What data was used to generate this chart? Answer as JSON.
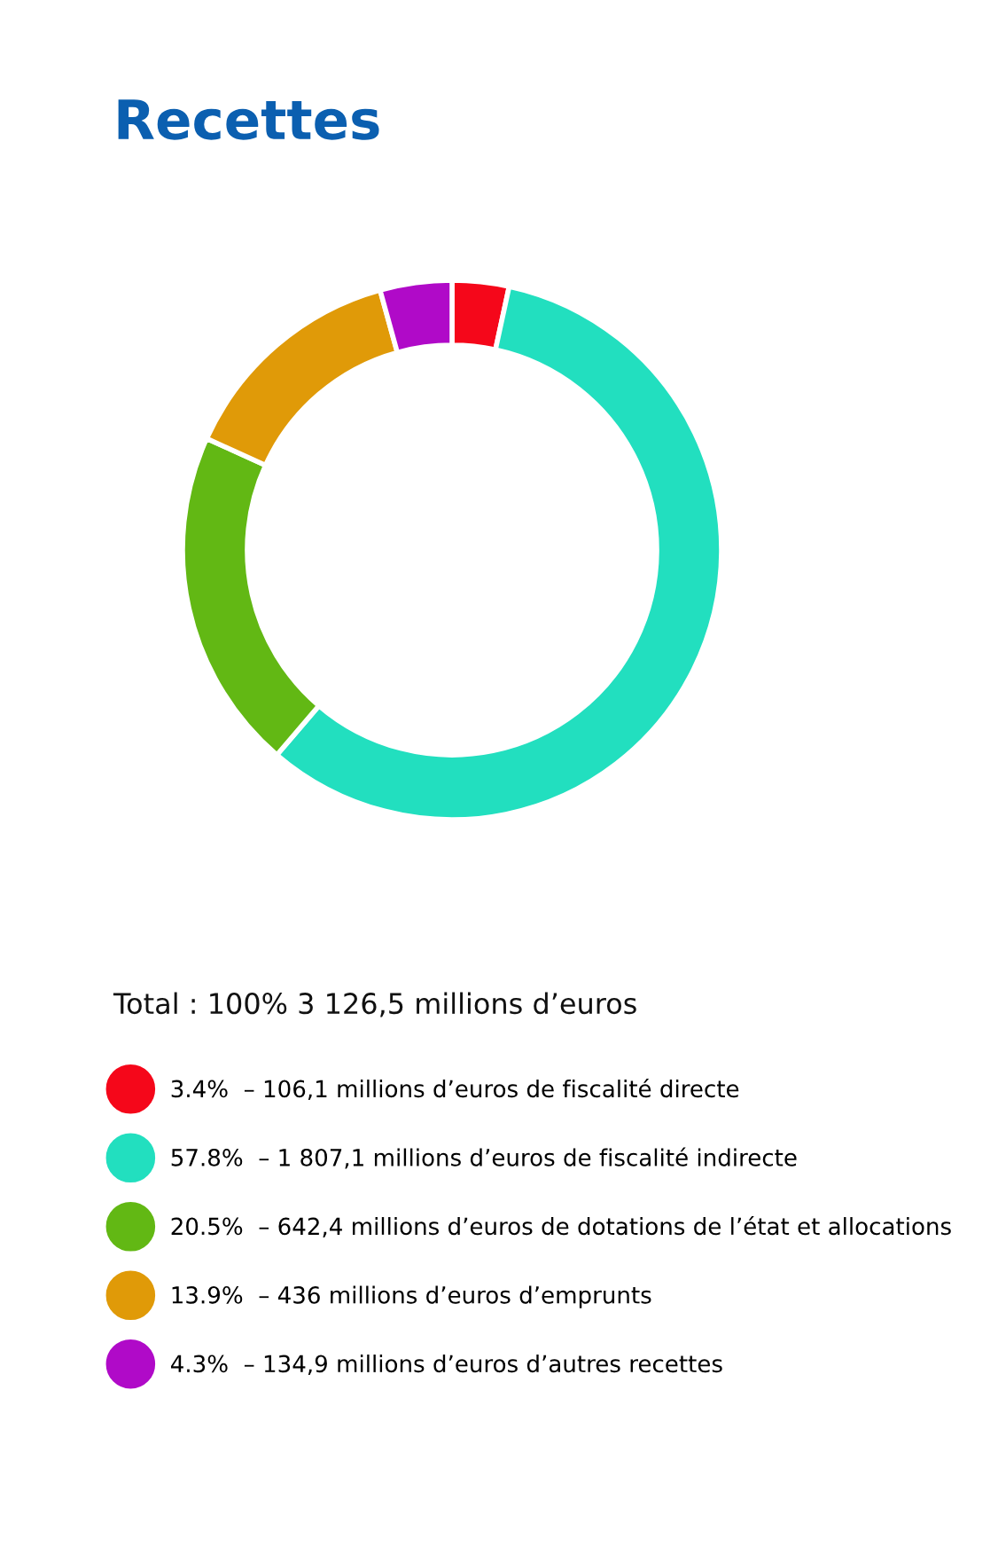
{
  "chart_data": {
    "type": "donut",
    "title": "Recettes",
    "categories": [
      "– 106,1 millions d’euros de fiscalité directe",
      "– 1 807,1 millions d’euros de fiscalité indirecte",
      "– 642,4 millions d’euros de dotations de l’état et allocations",
      "– 436 millions d’euros d’emprunts",
      "– 134,9 millions d’euros d’autres recettes"
    ],
    "values": [
      3.4,
      57.8,
      20.5,
      13.9,
      4.3
    ],
    "value_labels": [
      "3.4%",
      "57.8%",
      "20.5%",
      "13.9%",
      "4.3%"
    ],
    "colors": [
      "#f5071a",
      "#22dfbf",
      "#62b814",
      "#e09a08",
      "#b00ac8"
    ],
    "annotations": [
      "Total : 100% 3 126,5 millions d’euros"
    ],
    "legend": "bottom"
  }
}
